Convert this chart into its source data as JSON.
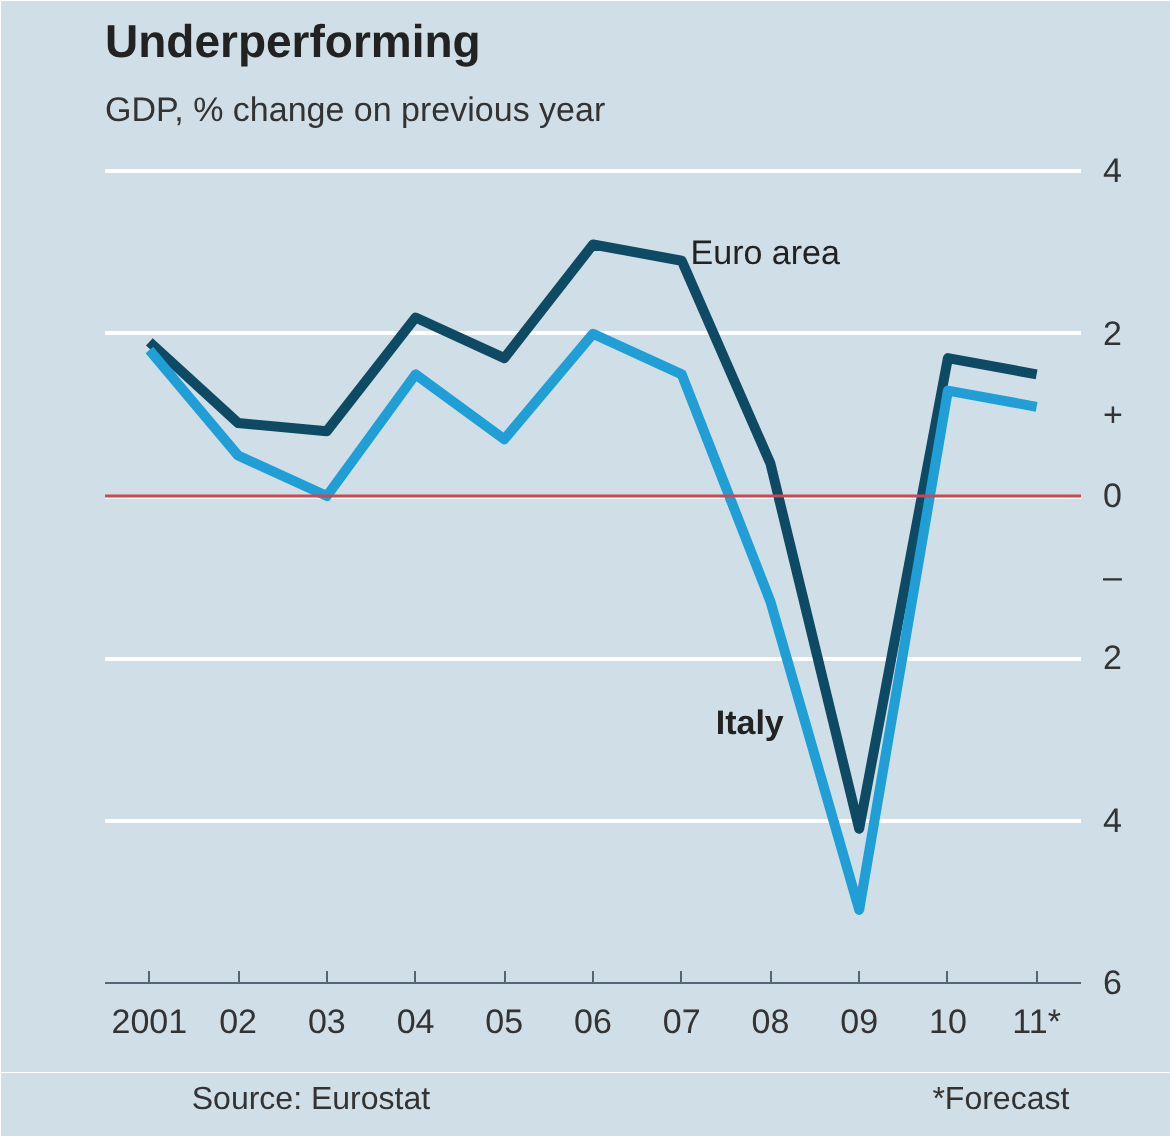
{
  "chart_data": {
    "type": "line",
    "title": "Underperforming",
    "subtitle": "GDP, % change on previous year",
    "categories": [
      "2001",
      "02",
      "03",
      "04",
      "05",
      "06",
      "07",
      "08",
      "09",
      "10",
      "11*"
    ],
    "series": [
      {
        "name": "Euro area",
        "color": "#0e4a63",
        "values": [
          1.9,
          0.9,
          0.8,
          2.2,
          1.7,
          3.1,
          2.9,
          0.4,
          -4.1,
          1.7,
          1.5
        ]
      },
      {
        "name": "Italy",
        "color": "#1f9fd6",
        "values": [
          1.8,
          0.5,
          0.0,
          1.5,
          0.7,
          2.0,
          1.5,
          -1.3,
          -5.1,
          1.3,
          1.1
        ]
      }
    ],
    "ylim": [
      -6,
      4.4
    ],
    "yticks": [
      4,
      2,
      {
        "value": 1,
        "label": "+"
      },
      0,
      {
        "value": -1,
        "label": "–"
      },
      {
        "value": -2,
        "label": "2"
      },
      {
        "value": -4,
        "label": "4"
      },
      {
        "value": -6,
        "label": "6"
      }
    ],
    "grid": "y",
    "marker": "none",
    "line_style": "solid",
    "ref_lines": [
      {
        "axis": "y",
        "value": 0,
        "color": "#d0464f"
      }
    ],
    "annotations": [
      "Source: Eurostat",
      "*Forecast"
    ]
  }
}
